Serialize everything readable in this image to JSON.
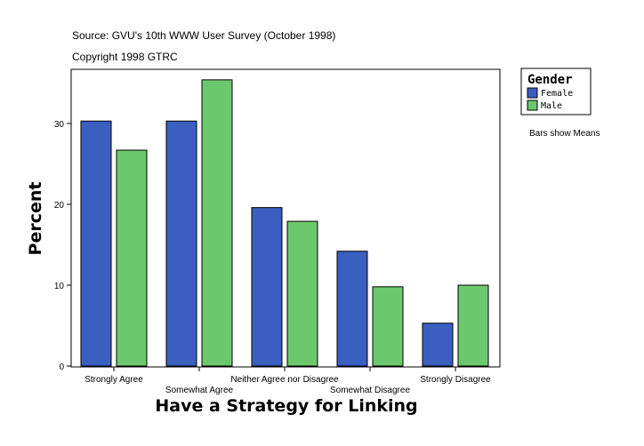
{
  "chart_data": {
    "type": "bar",
    "title": "Source: GVU's 10th WWW User Survey (October 1998)",
    "subtitle": "Copyright 1998 GTRC",
    "xlabel": "Have a Strategy for Linking",
    "ylabel": "Percent",
    "note": "Bars show Means",
    "legend_title": "Gender",
    "legend_position": "right",
    "categories": [
      "Strongly Agree",
      "Somewhat Agree",
      "Neither Agree nor Disagree",
      "Somewhat Disagree",
      "Strongly Disagree"
    ],
    "series": [
      {
        "name": "Female",
        "color": "#3a5fc0",
        "values": [
          30.3,
          30.3,
          19.6,
          14.2,
          5.3
        ]
      },
      {
        "name": "Male",
        "color": "#6cc86c",
        "values": [
          26.7,
          35.4,
          17.9,
          9.8,
          10.0
        ]
      }
    ],
    "ylim": [
      0,
      36.8
    ],
    "yticks": [
      0,
      10,
      20,
      30
    ],
    "grid": false
  }
}
